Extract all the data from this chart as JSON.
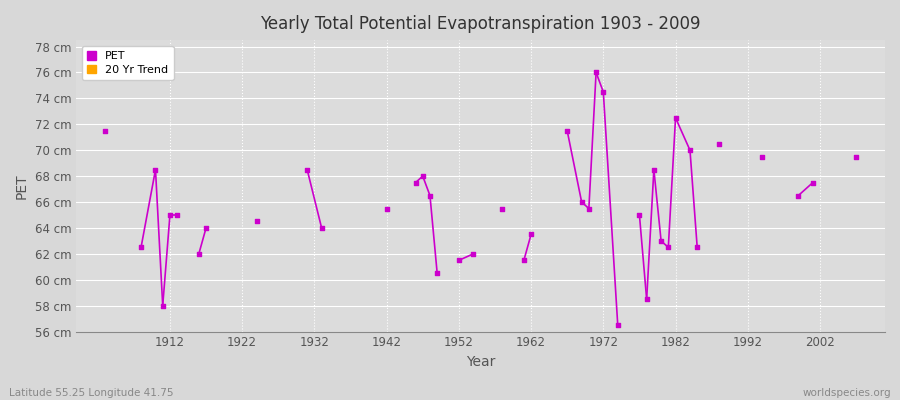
{
  "title": "Yearly Total Potential Evapotranspiration 1903 - 2009",
  "xlabel": "Year",
  "ylabel": "PET",
  "figure_bg": "#d8d8d8",
  "plot_bg": "#dcdcdc",
  "pet_color": "#cc00cc",
  "trend_color": "#ffa500",
  "ylim": [
    56,
    78.5
  ],
  "yticks": [
    56,
    58,
    60,
    62,
    64,
    66,
    68,
    70,
    72,
    74,
    76,
    78
  ],
  "ytick_labels": [
    "56 cm",
    "58 cm",
    "60 cm",
    "62 cm",
    "64 cm",
    "66 cm",
    "68 cm",
    "70 cm",
    "72 cm",
    "74 cm",
    "76 cm",
    "78 cm"
  ],
  "xlim": [
    1899,
    2011
  ],
  "xticks": [
    1912,
    1922,
    1932,
    1942,
    1952,
    1962,
    1972,
    1982,
    1992,
    2002
  ],
  "footer_left": "Latitude 55.25 Longitude 41.75",
  "footer_right": "worldspecies.org",
  "legend_labels": [
    "PET",
    "20 Yr Trend"
  ],
  "pet_data": [
    [
      1903,
      71.5
    ],
    [
      1908,
      62.5
    ],
    [
      1910,
      68.5
    ],
    [
      1911,
      58.0
    ],
    [
      1912,
      65.0
    ],
    [
      1913,
      65.0
    ],
    [
      1916,
      62.0
    ],
    [
      1917,
      64.0
    ],
    [
      1924,
      64.5
    ],
    [
      1931,
      68.5
    ],
    [
      1933,
      64.0
    ],
    [
      1942,
      65.5
    ],
    [
      1946,
      67.5
    ],
    [
      1947,
      68.0
    ],
    [
      1948,
      66.5
    ],
    [
      1949,
      60.5
    ],
    [
      1952,
      61.5
    ],
    [
      1954,
      62.0
    ],
    [
      1958,
      65.5
    ],
    [
      1961,
      61.5
    ],
    [
      1962,
      63.5
    ],
    [
      1967,
      71.5
    ],
    [
      1969,
      66.0
    ],
    [
      1970,
      65.5
    ],
    [
      1971,
      76.0
    ],
    [
      1972,
      74.5
    ],
    [
      1974,
      56.5
    ],
    [
      1977,
      65.0
    ],
    [
      1978,
      58.5
    ],
    [
      1979,
      68.5
    ],
    [
      1980,
      63.0
    ],
    [
      1981,
      62.5
    ],
    [
      1982,
      72.5
    ],
    [
      1984,
      70.0
    ],
    [
      1985,
      62.5
    ],
    [
      1988,
      70.5
    ],
    [
      1994,
      69.5
    ],
    [
      1999,
      66.5
    ],
    [
      2001,
      67.5
    ],
    [
      2007,
      69.5
    ]
  ],
  "connect_threshold": 2
}
